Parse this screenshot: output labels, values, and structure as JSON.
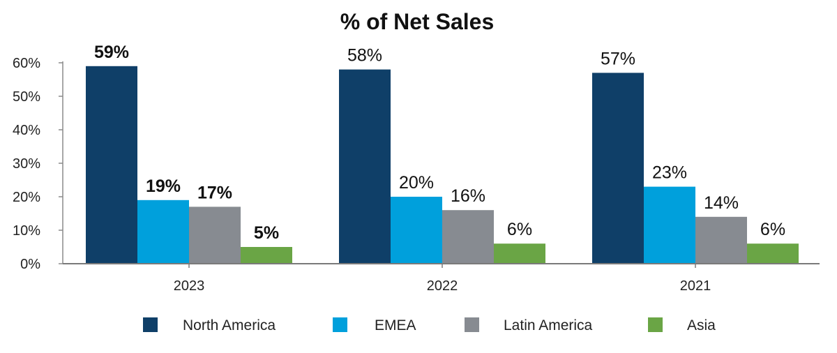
{
  "chart_data": {
    "type": "bar",
    "title": "% of Net Sales",
    "xlabel": "",
    "ylabel": "",
    "ylim": [
      0,
      60
    ],
    "y_ticks": [
      "0%",
      "10%",
      "20%",
      "30%",
      "40%",
      "50%",
      "60%"
    ],
    "y_tick_values": [
      0,
      10,
      20,
      30,
      40,
      50,
      60
    ],
    "grid": false,
    "legend_position": "bottom",
    "categories": [
      "2023",
      "2022",
      "2021"
    ],
    "bold_labels_category": "2023",
    "series": [
      {
        "name": "North America",
        "color": "#0f3f68",
        "values": [
          59,
          58,
          57
        ],
        "labels": [
          "59%",
          "58%",
          "57%"
        ]
      },
      {
        "name": "EMEA",
        "color": "#00a0dc",
        "values": [
          19,
          20,
          23
        ],
        "labels": [
          "19%",
          "20%",
          "23%"
        ]
      },
      {
        "name": "Latin America",
        "color": "#878b91",
        "values": [
          17,
          16,
          14
        ],
        "labels": [
          "17%",
          "16%",
          "14%"
        ]
      },
      {
        "name": "Asia",
        "color": "#6aa545",
        "values": [
          5,
          6,
          6
        ],
        "labels": [
          "5%",
          "6%",
          "6%"
        ]
      }
    ]
  }
}
